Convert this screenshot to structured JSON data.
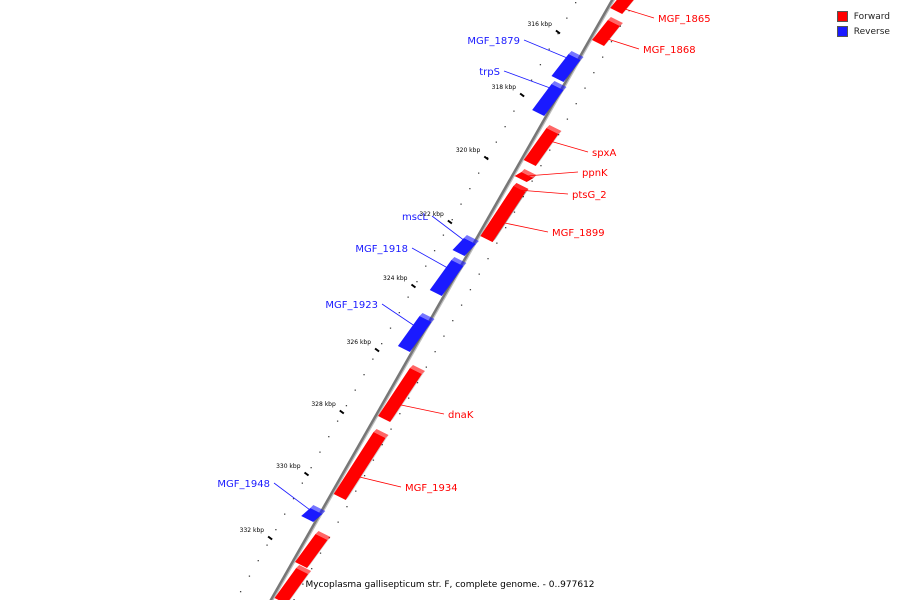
{
  "colors": {
    "forward": "#ff0000",
    "reverse": "#1a1aff",
    "backbone": "#777777"
  },
  "legend": {
    "forward_label": "Forward",
    "reverse_label": "Reverse"
  },
  "caption": "Mycoplasma gallisepticum str. F, complete genome. - 0..977612",
  "ticks": [
    "316 kbp",
    "318 kbp",
    "320 kbp",
    "322 kbp",
    "324 kbp",
    "326 kbp",
    "328 kbp",
    "330 kbp",
    "332 kbp"
  ],
  "genes": [
    {
      "name": "MGF_1865",
      "strand": "forward"
    },
    {
      "name": "MGF_1868",
      "strand": "forward"
    },
    {
      "name": "MGF_1879",
      "strand": "reverse"
    },
    {
      "name": "trpS",
      "strand": "reverse"
    },
    {
      "name": "spxA",
      "strand": "forward"
    },
    {
      "name": "ppnK",
      "strand": "forward"
    },
    {
      "name": "ptsG_2",
      "strand": "forward"
    },
    {
      "name": "MGF_1899",
      "strand": "forward"
    },
    {
      "name": "mscL",
      "strand": "reverse"
    },
    {
      "name": "MGF_1918",
      "strand": "reverse"
    },
    {
      "name": "MGF_1923",
      "strand": "reverse"
    },
    {
      "name": "dnaK",
      "strand": "forward"
    },
    {
      "name": "MGF_1934",
      "strand": "forward"
    },
    {
      "name": "MGF_1948",
      "strand": "reverse"
    }
  ]
}
